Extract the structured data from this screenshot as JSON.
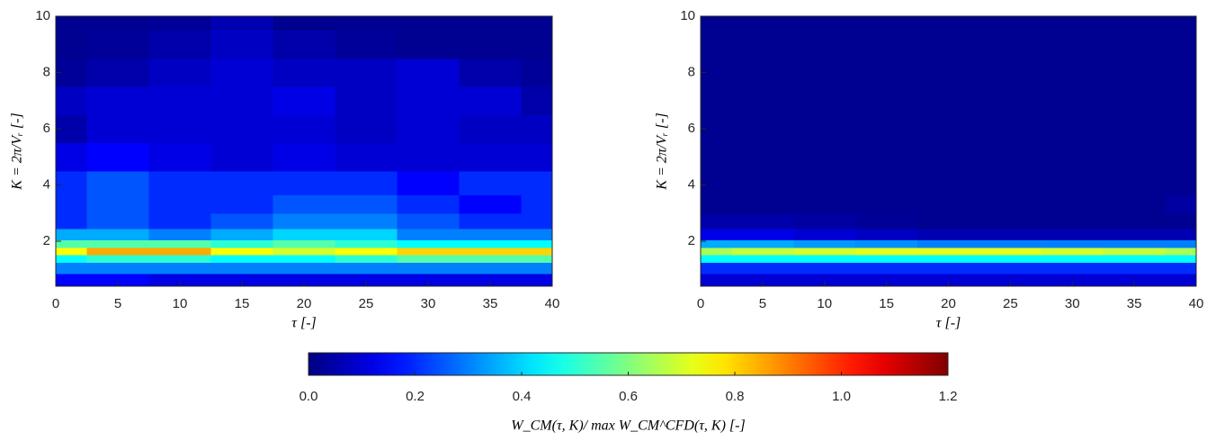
{
  "chart_data": [
    {
      "type": "heatmap",
      "colormap": "jet",
      "clim": [
        0,
        1.2
      ],
      "x_label": "τ [-]",
      "y_label": "K = 2π/Vᵣ [-]",
      "xlim": [
        0,
        40
      ],
      "ylim": [
        0.4,
        10
      ],
      "xticks": [
        0,
        5,
        10,
        15,
        20,
        25,
        30,
        35,
        40
      ],
      "yticks": [
        2,
        4,
        6,
        8,
        10
      ],
      "x": [
        0,
        5,
        10,
        15,
        20,
        25,
        30,
        35,
        40
      ],
      "y": [
        0.6,
        1.1,
        1.4,
        1.65,
        1.9,
        2.2,
        2.7,
        3.3,
        4,
        5,
        6,
        7,
        8,
        9,
        10
      ],
      "z": [
        [
          0.15,
          0.15,
          0.12,
          0.12,
          0.12,
          0.12,
          0.12,
          0.12,
          0.12
        ],
        [
          0.3,
          0.3,
          0.3,
          0.3,
          0.3,
          0.3,
          0.3,
          0.3,
          0.3
        ],
        [
          0.45,
          0.5,
          0.5,
          0.45,
          0.45,
          0.5,
          0.55,
          0.55,
          0.55
        ],
        [
          0.75,
          0.85,
          0.85,
          0.75,
          0.7,
          0.75,
          0.8,
          0.8,
          0.8
        ],
        [
          0.55,
          0.55,
          0.55,
          0.5,
          0.55,
          0.5,
          0.45,
          0.45,
          0.45
        ],
        [
          0.35,
          0.35,
          0.3,
          0.35,
          0.4,
          0.4,
          0.3,
          0.3,
          0.3
        ],
        [
          0.2,
          0.25,
          0.2,
          0.25,
          0.3,
          0.3,
          0.25,
          0.2,
          0.2
        ],
        [
          0.2,
          0.25,
          0.2,
          0.2,
          0.25,
          0.25,
          0.2,
          0.15,
          0.2
        ],
        [
          0.2,
          0.25,
          0.2,
          0.2,
          0.2,
          0.2,
          0.15,
          0.2,
          0.2
        ],
        [
          0.12,
          0.15,
          0.12,
          0.1,
          0.12,
          0.1,
          0.1,
          0.1,
          0.1
        ],
        [
          0.05,
          0.1,
          0.1,
          0.1,
          0.1,
          0.08,
          0.1,
          0.08,
          0.08
        ],
        [
          0.08,
          0.1,
          0.1,
          0.1,
          0.12,
          0.08,
          0.1,
          0.1,
          0.05
        ],
        [
          0.03,
          0.05,
          0.08,
          0.1,
          0.08,
          0.08,
          0.1,
          0.05,
          0.03
        ],
        [
          0.02,
          0.03,
          0.05,
          0.08,
          0.05,
          0.03,
          0.02,
          0.02,
          0.02
        ],
        [
          0.02,
          0.02,
          0.03,
          0.06,
          0.02,
          0.02,
          0.02,
          0.02,
          0.02
        ]
      ]
    },
    {
      "type": "heatmap",
      "colormap": "jet",
      "clim": [
        0,
        1.2
      ],
      "x_label": "τ [-]",
      "y_label": "K = 2π/Vᵣ [-]",
      "xlim": [
        0,
        40
      ],
      "ylim": [
        0.4,
        10
      ],
      "xticks": [
        0,
        5,
        10,
        15,
        20,
        25,
        30,
        35,
        40
      ],
      "yticks": [
        2,
        4,
        6,
        8,
        10
      ],
      "x": [
        0,
        5,
        10,
        15,
        20,
        25,
        30,
        35,
        40
      ],
      "y": [
        0.6,
        1.1,
        1.4,
        1.65,
        1.9,
        2.2,
        2.7,
        3.3,
        4,
        5,
        6,
        7,
        8,
        9,
        10
      ],
      "z": [
        [
          0.1,
          0.1,
          0.1,
          0.1,
          0.1,
          0.1,
          0.1,
          0.1,
          0.1
        ],
        [
          0.2,
          0.2,
          0.2,
          0.2,
          0.2,
          0.2,
          0.2,
          0.2,
          0.2
        ],
        [
          0.45,
          0.45,
          0.45,
          0.45,
          0.45,
          0.45,
          0.45,
          0.45,
          0.45
        ],
        [
          0.65,
          0.68,
          0.7,
          0.72,
          0.72,
          0.72,
          0.7,
          0.68,
          0.65
        ],
        [
          0.35,
          0.35,
          0.33,
          0.32,
          0.3,
          0.3,
          0.3,
          0.3,
          0.3
        ],
        [
          0.12,
          0.12,
          0.1,
          0.08,
          0.06,
          0.06,
          0.06,
          0.06,
          0.06
        ],
        [
          0.05,
          0.05,
          0.04,
          0.03,
          0.02,
          0.02,
          0.02,
          0.02,
          0.02
        ],
        [
          0.02,
          0.02,
          0.02,
          0.02,
          0.02,
          0.02,
          0.02,
          0.02,
          0.04
        ],
        [
          0.02,
          0.02,
          0.02,
          0.02,
          0.02,
          0.02,
          0.02,
          0.02,
          0.02
        ],
        [
          0.02,
          0.02,
          0.02,
          0.02,
          0.02,
          0.02,
          0.02,
          0.02,
          0.02
        ],
        [
          0.02,
          0.02,
          0.02,
          0.02,
          0.02,
          0.02,
          0.02,
          0.02,
          0.02
        ],
        [
          0.02,
          0.02,
          0.02,
          0.02,
          0.02,
          0.02,
          0.02,
          0.02,
          0.02
        ],
        [
          0.02,
          0.02,
          0.02,
          0.02,
          0.02,
          0.02,
          0.02,
          0.02,
          0.02
        ],
        [
          0.02,
          0.02,
          0.02,
          0.02,
          0.02,
          0.02,
          0.02,
          0.02,
          0.02
        ],
        [
          0.02,
          0.02,
          0.02,
          0.02,
          0.02,
          0.02,
          0.02,
          0.02,
          0.02
        ]
      ]
    },
    {
      "type": "colorbar",
      "colormap": "jet",
      "clim": [
        0,
        1.2
      ],
      "label": "W_CM(τ, K)/ max W_CM^CFD(τ, K) [-]",
      "ticks": [
        {
          "value": 0,
          "label": "0.0"
        },
        {
          "value": 0.2,
          "label": "0.2"
        },
        {
          "value": 0.4,
          "label": "0.4"
        },
        {
          "value": 0.6,
          "label": "0.6"
        },
        {
          "value": 0.8,
          "label": "0.8"
        },
        {
          "value": 1,
          "label": "1.0"
        },
        {
          "value": 1.2,
          "label": "1.2"
        }
      ]
    }
  ]
}
